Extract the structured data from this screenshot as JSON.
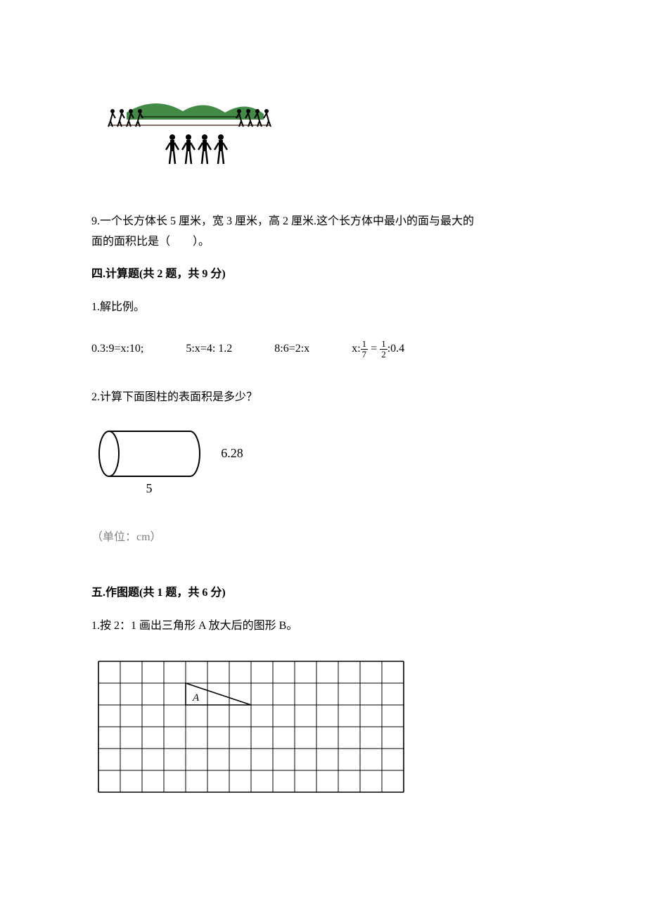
{
  "illustration": {
    "top_row_figures": 8,
    "bottom_row_figures": 4,
    "figure_color": "#000000",
    "hill_color": "#2e7d32",
    "ground_color": "#8d6e63"
  },
  "q9": {
    "text_a": "9.一个长方体长 5 厘米，宽 3 厘米，高 2 厘米.这个长方体中最小的面与最大的",
    "text_b": "面的面积比是（　　）。"
  },
  "section4": {
    "heading": "四.计算题(共 2 题，共 9 分)",
    "q1_label": "1.解比例。",
    "items": [
      "0.3:9=x:10;",
      "5:x=4: 1.2",
      "8:6=2:x"
    ],
    "item4_prefix": "x:",
    "item4_f1_num": "1",
    "item4_f1_den": "7",
    "item4_mid": " = ",
    "item4_f2_num": "1",
    "item4_f2_den": "2",
    "item4_suffix": ":0.4",
    "q2_label": "2.计算下面图柱的表面积是多少？",
    "cylinder": {
      "length_label": "5",
      "diameter_label": "6.28",
      "stroke": "#000000",
      "stroke_width": 2
    },
    "unit_note": "（单位：cm）"
  },
  "section5": {
    "heading": "五.作图题(共 1 题，共 6 分)",
    "q1_label": "1.按 2：1 画出三角形 A 放大后的图形 B。",
    "grid": {
      "cols": 14,
      "rows": 6,
      "cell": 31,
      "stroke": "#000000",
      "triangle": {
        "label": "A",
        "label_style": "italic",
        "p1_col": 4,
        "p1_row": 1,
        "p2_col": 4,
        "p2_row": 2,
        "p3_col": 7,
        "p3_row": 2
      }
    }
  }
}
